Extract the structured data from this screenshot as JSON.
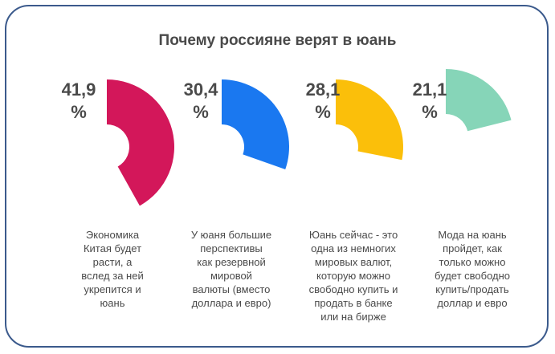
{
  "chart_data": {
    "type": "pie",
    "title": "Почему россияне верят в юань",
    "unit": "%",
    "items": [
      {
        "value_label": "41,9",
        "value": 41.9,
        "color": "#d3175a",
        "label": "Экономика\nКитая будет\nрасти, а\nвслед за ней\nукрепится и\nюань"
      },
      {
        "value_label": "30,4",
        "value": 30.4,
        "color": "#1a78f0",
        "label": "У юаня большие\nперспективы\nкак резервной\nмировой\nвалюты (вместо\nдоллара и евро)"
      },
      {
        "value_label": "28,1",
        "value": 28.1,
        "color": "#fbbf0a",
        "label": "Юань сейчас - это\nодна из немногих\nмировых валют,\nкоторую можно\nсвободно купить и\nпродать в банке\nили на бирже"
      },
      {
        "value_label": "21,1",
        "value": 21.1,
        "color": "#86d5b8",
        "label": "Мода на юань\nпройдет, как\nтолько можно\nбудет свободно\nкупить/продать\nдоллар и евро"
      }
    ]
  }
}
